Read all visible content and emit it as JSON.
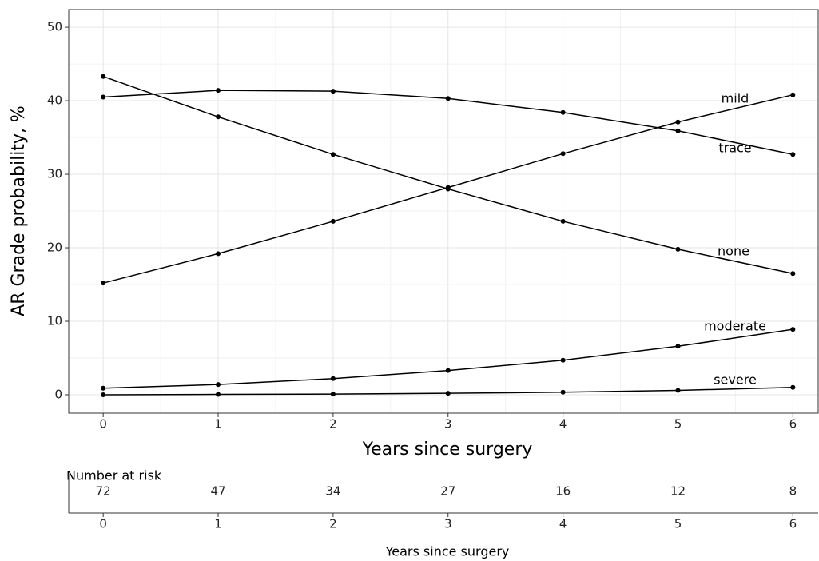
{
  "chart_data": [
    {
      "type": "line",
      "xlabel": "Years since surgery",
      "ylabel": "AR Grade probability, %",
      "x": [
        0,
        1,
        2,
        3,
        4,
        5,
        6
      ],
      "series": [
        {
          "name": "mild",
          "color": "#000000",
          "values": [
            15.2,
            19.2,
            23.6,
            28.2,
            32.8,
            37.1,
            40.8
          ]
        },
        {
          "name": "trace",
          "color": "#000000",
          "values": [
            40.5,
            41.4,
            41.3,
            40.3,
            38.4,
            35.9,
            32.7
          ]
        },
        {
          "name": "none",
          "color": "#000000",
          "values": [
            43.3,
            37.8,
            32.7,
            28.0,
            23.6,
            19.8,
            16.5
          ]
        },
        {
          "name": "moderate",
          "color": "#000000",
          "values": [
            0.9,
            1.4,
            2.2,
            3.3,
            4.7,
            6.6,
            8.9
          ]
        },
        {
          "name": "severe",
          "color": "#000000",
          "values": [
            0,
            0.05,
            0.1,
            0.2,
            0.35,
            0.6,
            1.0
          ]
        }
      ],
      "xlim": [
        -0.3,
        6.22
      ],
      "xticks": [
        0,
        1,
        2,
        3,
        4,
        5,
        6
      ],
      "ylim": [
        -2.5,
        52.4
      ],
      "yticks": [
        0,
        10,
        20,
        30,
        40,
        50
      ],
      "grid": true
    },
    {
      "type": "risk_table",
      "title": "Number at risk",
      "xlabel": "Years since surgery",
      "x": [
        0,
        1,
        2,
        3,
        4,
        5,
        6
      ],
      "values": [
        72,
        47,
        34,
        27,
        16,
        12,
        8
      ],
      "xlim": [
        -0.3,
        6.22
      ],
      "xticks": [
        0,
        1,
        2,
        3,
        4,
        5,
        6
      ]
    }
  ]
}
